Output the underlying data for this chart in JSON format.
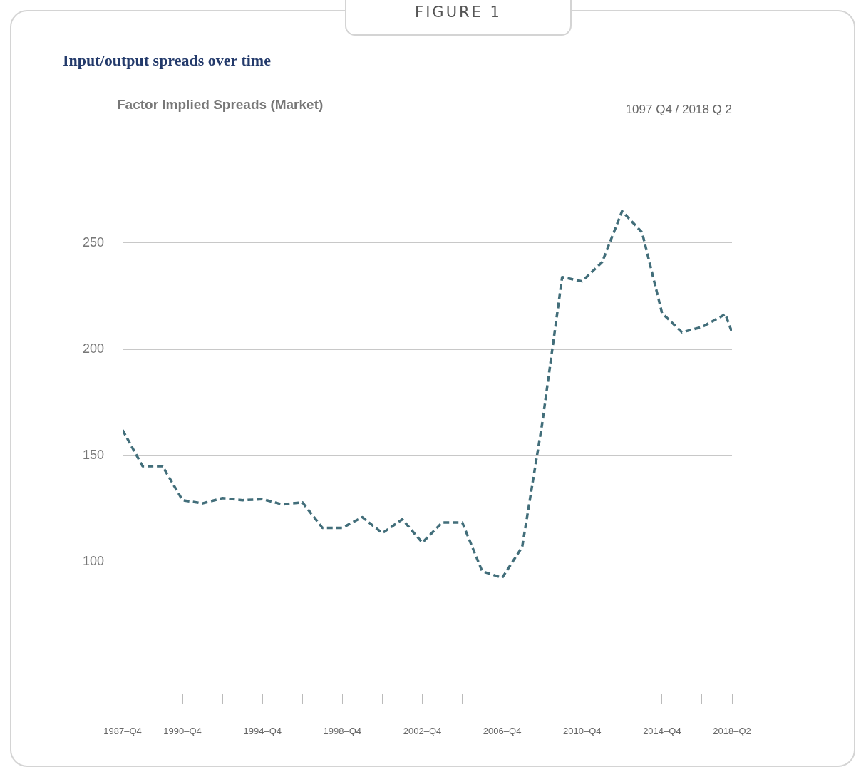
{
  "chart_data": {
    "type": "line",
    "title": "Input/output spreads over time",
    "subtitle": "Factor Implied Spreads (Market)",
    "annotations": [
      "FIGURE 1",
      "1097 Q4 / 2018 Q 2"
    ],
    "x": [
      "1987-10",
      "1988-10",
      "1989-10",
      "1990-10",
      "1991-10",
      "1992-10",
      "1993-10",
      "1994-10",
      "1995-10",
      "1996-10",
      "1997-10",
      "1998-10",
      "1999-10",
      "2000-10",
      "2001-10",
      "2002-10",
      "2003-10",
      "2004-10",
      "2005-10",
      "2006-10",
      "2007-10",
      "2008-10",
      "2009-10",
      "2010-10",
      "2011-10",
      "2012-10",
      "2013-10",
      "2014-10",
      "2015-10",
      "2016-10",
      "2017-12",
      "2018-04"
    ],
    "series": [
      {
        "color": "#426e7a",
        "values": [
          162,
          145,
          145,
          129,
          127.5,
          130,
          129,
          129.5,
          127,
          128,
          116,
          116,
          121,
          113.5,
          120,
          109,
          118.5,
          118.5,
          95.5,
          92.5,
          107,
          165,
          234,
          232,
          241,
          265,
          255,
          217,
          208,
          210.5,
          216.5,
          208
        ]
      }
    ],
    "xlim": [
      "1987-10",
      "2018-04"
    ],
    "xticks": [
      {
        "value": "1987-10",
        "label": "1987–Q4"
      },
      {
        "value": "1988-10",
        "label": null
      },
      {
        "value": "1990-10",
        "label": "1990–Q4"
      },
      {
        "value": "1992-10",
        "label": null
      },
      {
        "value": "1994-10",
        "label": "1994–Q4"
      },
      {
        "value": "1996-10",
        "label": null
      },
      {
        "value": "1998-10",
        "label": "1998–Q4"
      },
      {
        "value": "2000-10",
        "label": null
      },
      {
        "value": "2002-10",
        "label": "2002–Q4"
      },
      {
        "value": "2004-10",
        "label": null
      },
      {
        "value": "2006-10",
        "label": "2006–Q4"
      },
      {
        "value": "2008-10",
        "label": null
      },
      {
        "value": "2010-10",
        "label": "2010–Q4"
      },
      {
        "value": "2012-10",
        "label": null
      },
      {
        "value": "2014-10",
        "label": "2014–Q4"
      },
      {
        "value": "2016-10",
        "label": null
      },
      {
        "value": "2018-04",
        "label": "2018–Q2"
      }
    ],
    "ylim": [
      38,
      295
    ],
    "yticks": [
      100,
      150,
      200,
      250
    ],
    "grid": "y",
    "legend": false,
    "marker": "none",
    "line_style": "dashed"
  }
}
